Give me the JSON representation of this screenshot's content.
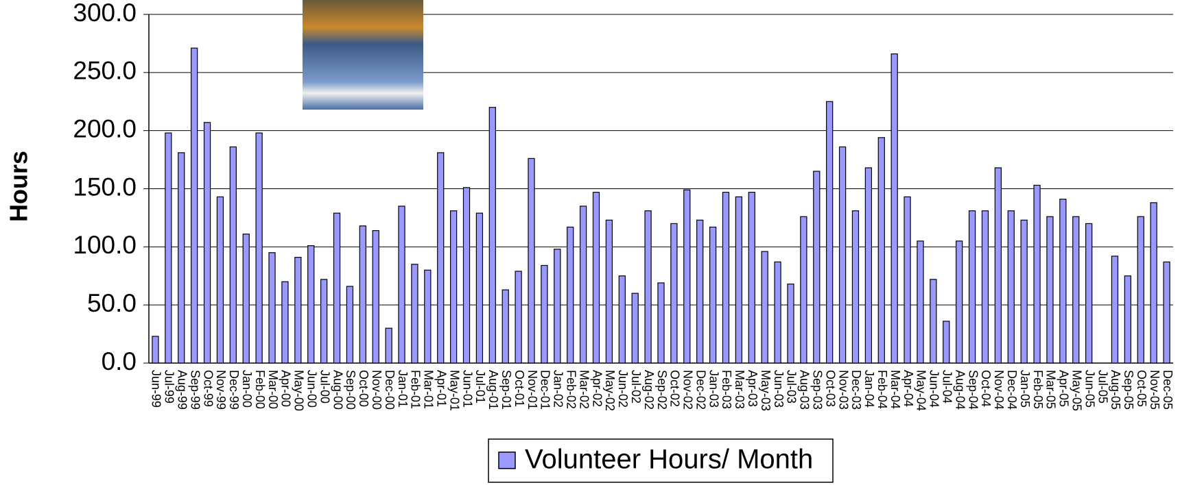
{
  "chart_data": {
    "type": "bar",
    "y_label": "Hours",
    "categories": [
      "Jun-99",
      "Jul-99",
      "Aug-99",
      "Sep-99",
      "Oct-99",
      "Nov-99",
      "Dec-99",
      "Jan-00",
      "Feb-00",
      "Mar-00",
      "Apr-00",
      "May-00",
      "Jun-00",
      "Jul-00",
      "Aug-00",
      "Sep-00",
      "Oct-00",
      "Nov-00",
      "Dec-00",
      "Jan-01",
      "Feb-01",
      "Mar-01",
      "Apr-01",
      "May-01",
      "Jun-01",
      "Jul-01",
      "Aug-01",
      "Sep-01",
      "Oct-01",
      "Nov-01",
      "Dec-01",
      "Jan-02",
      "Feb-02",
      "Mar-02",
      "Apr-02",
      "May-02",
      "Jun-02",
      "Jul-02",
      "Aug-02",
      "Sep-02",
      "Oct-02",
      "Nov-02",
      "Dec-02",
      "Jan-03",
      "Feb-03",
      "Mar-03",
      "Apr-03",
      "May-03",
      "Jun-03",
      "Jul-03",
      "Aug-03",
      "Sep-03",
      "Oct-03",
      "Nov-03",
      "Dec-03",
      "Jan-04",
      "Feb-04",
      "Mar-04",
      "Apr-04",
      "May-04",
      "Jun-04",
      "Jul-04",
      "Aug-04",
      "Sep-04",
      "Oct-04",
      "Nov-04",
      "Dec-04",
      "Jan-05",
      "Feb-05",
      "Mar-05",
      "Apr-05",
      "May-05",
      "Jun-05",
      "Jul-05",
      "Aug-05",
      "Sep-05",
      "Oct-05",
      "Nov-05",
      "Dec-05"
    ],
    "series": [
      {
        "name": "Volunteer Hours/ Month",
        "color": "#9999ff",
        "values": [
          23,
          198,
          181,
          271,
          207,
          143,
          186,
          111,
          198,
          95,
          70,
          91,
          101,
          72,
          129,
          66,
          118,
          114,
          30,
          135,
          85,
          80,
          181,
          131,
          151,
          129,
          220,
          63,
          79,
          176,
          84,
          98,
          117,
          135,
          147,
          123,
          75,
          60,
          131,
          69,
          120,
          149,
          123,
          117,
          147,
          143,
          147,
          96,
          87,
          68,
          126,
          165,
          225,
          186,
          131,
          168,
          194,
          266,
          143,
          105,
          72,
          36,
          105,
          131,
          131,
          168,
          131,
          123,
          153,
          126,
          141,
          126,
          120,
          null,
          92,
          75,
          126,
          138,
          87
        ]
      }
    ],
    "ylim": [
      0,
      300
    ],
    "yticks": [
      {
        "value": 0,
        "label": "0.0"
      },
      {
        "value": 50,
        "label": "50.0"
      },
      {
        "value": 100,
        "label": "100.0"
      },
      {
        "value": 150,
        "label": "150.0"
      },
      {
        "value": 200,
        "label": "200.0"
      },
      {
        "value": 250,
        "label": "250.0"
      },
      {
        "value": 300,
        "label": "300.0"
      }
    ],
    "grid": true,
    "legend": "bottom"
  }
}
